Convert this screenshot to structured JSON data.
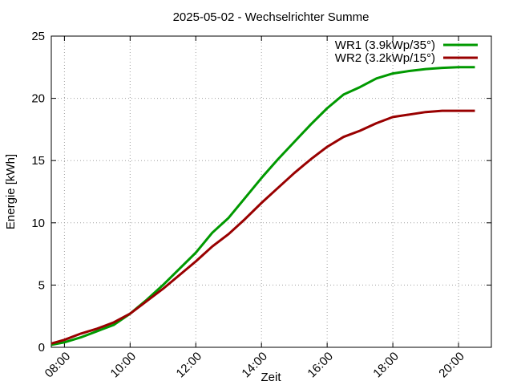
{
  "chart_data": {
    "type": "line",
    "title": "2025-05-02 - Wechselrichter Summe",
    "xlabel": "Zeit",
    "ylabel": "Energie [kWh]",
    "xlim": [
      7.6,
      21.0
    ],
    "ylim": [
      0,
      25
    ],
    "x_ticks": [
      8,
      10,
      12,
      14,
      16,
      18,
      20
    ],
    "x_tick_labels": [
      "08:00",
      "10:00",
      "12:00",
      "14:00",
      "16:00",
      "18:00",
      "20:00"
    ],
    "y_ticks": [
      0,
      5,
      10,
      15,
      20,
      25
    ],
    "y_tick_labels": [
      "0",
      "5",
      "10",
      "15",
      "20",
      "25"
    ],
    "grid": true,
    "legend_position": "top-right",
    "series": [
      {
        "name": "WR1 (3.9kWp/35°)",
        "color": "#009900",
        "x": [
          7.6,
          8.0,
          8.5,
          9.0,
          9.5,
          10.0,
          10.5,
          11.0,
          11.5,
          12.0,
          12.5,
          13.0,
          13.5,
          14.0,
          14.5,
          15.0,
          15.5,
          16.0,
          16.5,
          17.0,
          17.5,
          18.0,
          18.5,
          19.0,
          19.5,
          20.0,
          20.5
        ],
        "values": [
          0.2,
          0.4,
          0.8,
          1.3,
          1.8,
          2.7,
          3.8,
          5.0,
          6.3,
          7.6,
          9.2,
          10.4,
          12.0,
          13.6,
          15.1,
          16.5,
          17.9,
          19.2,
          20.3,
          20.9,
          21.6,
          22.0,
          22.2,
          22.35,
          22.45,
          22.5,
          22.5
        ]
      },
      {
        "name": "WR2 (3.2kWp/15°)",
        "color": "#990000",
        "x": [
          7.6,
          8.0,
          8.5,
          9.0,
          9.5,
          10.0,
          10.5,
          11.0,
          11.5,
          12.0,
          12.5,
          13.0,
          13.5,
          14.0,
          14.5,
          15.0,
          15.5,
          16.0,
          16.5,
          17.0,
          17.5,
          18.0,
          18.5,
          19.0,
          19.5,
          20.0,
          20.5
        ],
        "values": [
          0.3,
          0.6,
          1.1,
          1.5,
          2.0,
          2.7,
          3.7,
          4.7,
          5.8,
          6.9,
          8.1,
          9.1,
          10.3,
          11.6,
          12.8,
          14.0,
          15.1,
          16.1,
          16.9,
          17.4,
          18.0,
          18.5,
          18.7,
          18.9,
          19.0,
          19.0,
          19.0
        ]
      }
    ]
  }
}
